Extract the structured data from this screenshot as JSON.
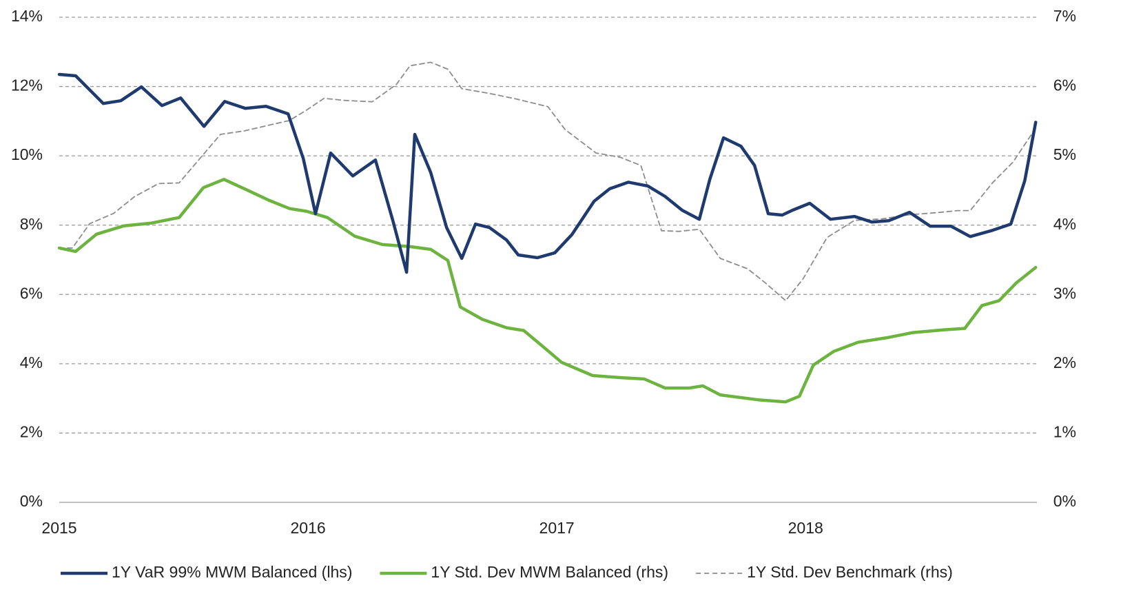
{
  "chart_data": {
    "type": "line",
    "xlim": [
      2015,
      2018.93
    ],
    "xticks": [
      2015,
      2016,
      2017,
      2018
    ],
    "ylim": [
      0,
      14
    ],
    "yticks": [
      {
        "value": 0,
        "label": "0%"
      },
      {
        "value": 2,
        "label": "2%"
      },
      {
        "value": 4,
        "label": "4%"
      },
      {
        "value": 6,
        "label": "6%"
      },
      {
        "value": 8,
        "label": "8%"
      },
      {
        "value": 10,
        "label": "10%"
      },
      {
        "value": 12,
        "label": "12%"
      },
      {
        "value": 14,
        "label": "14%"
      }
    ],
    "y2lim": [
      0,
      7
    ],
    "y2ticks": [
      {
        "value": 0,
        "label": "0%"
      },
      {
        "value": 1,
        "label": "1%"
      },
      {
        "value": 2,
        "label": "2%"
      },
      {
        "value": 3,
        "label": "3%"
      },
      {
        "value": 4,
        "label": "4%"
      },
      {
        "value": 5,
        "label": "5%"
      },
      {
        "value": 6,
        "label": "6%"
      },
      {
        "value": 7,
        "label": "7%"
      }
    ],
    "grid": true,
    "legend": "bottom",
    "series": [
      {
        "name": "1Y VaR 99% MWM Balanced (lhs)",
        "color": "#1f3a6e",
        "style": "solid",
        "axis": "y",
        "x": [
          2015.0,
          2015.066,
          2015.177,
          2015.247,
          2015.33,
          2015.413,
          2015.488,
          2015.582,
          2015.665,
          2015.748,
          2015.831,
          2015.92,
          2015.981,
          2016.03,
          2016.091,
          2016.18,
          2016.271,
          2016.341,
          2016.396,
          2016.429,
          2016.493,
          2016.557,
          2016.618,
          2016.673,
          2016.729,
          2016.798,
          2016.845,
          2016.922,
          2016.992,
          2017.061,
          2017.15,
          2017.213,
          2017.288,
          2017.366,
          2017.435,
          2017.504,
          2017.573,
          2017.615,
          2017.67,
          2017.74,
          2017.795,
          2017.85,
          2017.906,
          2017.947,
          2018.017,
          2018.1,
          2018.197,
          2018.266,
          2018.335,
          2018.418,
          2018.501,
          2018.584,
          2018.662,
          2018.751,
          2018.825,
          2018.881,
          2018.925
        ],
        "values": [
          12.35,
          12.31,
          11.51,
          11.59,
          11.99,
          11.45,
          11.67,
          10.85,
          11.57,
          11.37,
          11.43,
          11.21,
          9.92,
          8.33,
          10.08,
          9.42,
          9.88,
          8.13,
          6.64,
          10.62,
          9.52,
          7.93,
          7.04,
          8.03,
          7.93,
          7.57,
          7.14,
          7.06,
          7.2,
          7.73,
          8.69,
          9.05,
          9.24,
          9.13,
          8.83,
          8.43,
          8.17,
          9.32,
          10.52,
          10.28,
          9.72,
          8.33,
          8.29,
          8.43,
          8.63,
          8.17,
          8.25,
          8.09,
          8.13,
          8.37,
          7.97,
          7.97,
          7.67,
          7.85,
          8.03,
          9.28,
          10.97
        ]
      },
      {
        "name": "1Y Std. Dev MWM Balanced (rhs)",
        "color": "#6db33f",
        "style": "solid",
        "axis": "y2",
        "x": [
          2015.0,
          2015.066,
          2015.15,
          2015.26,
          2015.371,
          2015.482,
          2015.579,
          2015.662,
          2015.759,
          2015.842,
          2015.925,
          2015.994,
          2016.078,
          2016.188,
          2016.299,
          2016.41,
          2016.493,
          2016.562,
          2016.612,
          2016.701,
          2016.798,
          2016.867,
          2016.95,
          2017.019,
          2017.144,
          2017.255,
          2017.352,
          2017.435,
          2017.532,
          2017.587,
          2017.657,
          2017.809,
          2017.92,
          2017.975,
          2018.031,
          2018.114,
          2018.211,
          2018.335,
          2018.432,
          2018.557,
          2018.64,
          2018.709,
          2018.778,
          2018.848,
          2018.925
        ],
        "values": [
          3.67,
          3.62,
          3.87,
          3.99,
          4.03,
          4.11,
          4.54,
          4.66,
          4.5,
          4.36,
          4.24,
          4.2,
          4.11,
          3.84,
          3.72,
          3.69,
          3.65,
          3.49,
          2.82,
          2.64,
          2.52,
          2.48,
          2.23,
          2.02,
          1.83,
          1.8,
          1.78,
          1.65,
          1.65,
          1.68,
          1.55,
          1.48,
          1.45,
          1.53,
          1.98,
          2.18,
          2.31,
          2.38,
          2.45,
          2.49,
          2.51,
          2.84,
          2.91,
          3.17,
          3.39
        ]
      },
      {
        "name": "1Y Std. Dev Benchmark (rhs)",
        "color": "#8c8c8c",
        "style": "dashed",
        "axis": "y2",
        "x": [
          2015.0,
          2015.053,
          2015.122,
          2015.219,
          2015.302,
          2015.399,
          2015.482,
          2015.565,
          2015.648,
          2015.745,
          2015.828,
          2015.925,
          2015.994,
          2016.064,
          2016.147,
          2016.258,
          2016.355,
          2016.41,
          2016.493,
          2016.562,
          2016.618,
          2016.729,
          2016.825,
          2016.964,
          2017.033,
          2017.158,
          2017.255,
          2017.338,
          2017.421,
          2017.49,
          2017.573,
          2017.657,
          2017.767,
          2017.837,
          2017.92,
          2017.989,
          2018.086,
          2018.197,
          2018.307,
          2018.418,
          2018.529,
          2018.612,
          2018.662,
          2018.751,
          2018.834,
          2018.925
        ],
        "values": [
          3.67,
          3.67,
          4.02,
          4.17,
          4.41,
          4.6,
          4.61,
          4.96,
          5.31,
          5.36,
          5.43,
          5.51,
          5.66,
          5.83,
          5.8,
          5.78,
          6.03,
          6.3,
          6.35,
          6.25,
          5.97,
          5.9,
          5.83,
          5.71,
          5.38,
          5.04,
          4.98,
          4.86,
          3.92,
          3.91,
          3.94,
          3.52,
          3.37,
          3.17,
          2.91,
          3.22,
          3.82,
          4.07,
          4.09,
          4.15,
          4.18,
          4.21,
          4.21,
          4.61,
          4.91,
          5.4
        ]
      }
    ]
  }
}
